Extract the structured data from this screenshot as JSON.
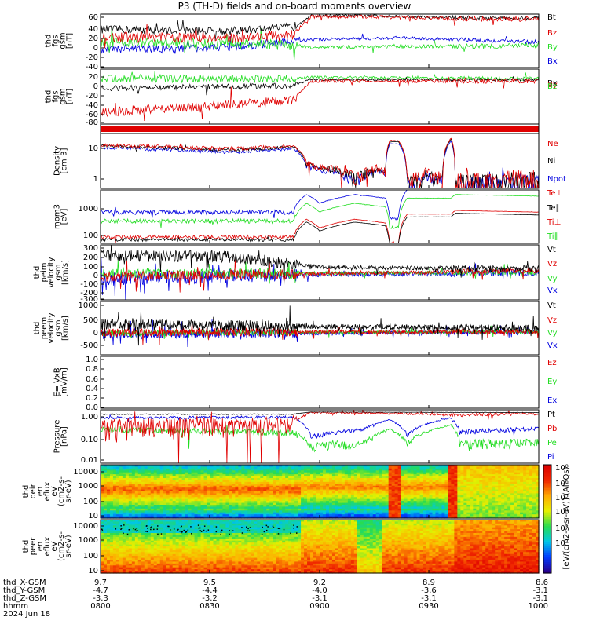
{
  "title": "P3 (TH-D) fields and on-board moments overview",
  "colors": {
    "black": "#000000",
    "red": "#e00000",
    "green": "#22dd22",
    "blue": "#0000e0"
  },
  "panels": [
    {
      "id": "fgs",
      "ylabel": [
        "thd",
        "fgs",
        "gsm",
        "[nT]"
      ],
      "ticks": [
        "60",
        "40",
        "20",
        "0",
        "-20",
        "-40"
      ],
      "legend": [
        {
          "t": "Bt",
          "c": "black"
        },
        {
          "t": "Bz",
          "c": "red"
        },
        {
          "t": "By",
          "c": "green"
        },
        {
          "t": "Bx",
          "c": "blue"
        }
      ]
    },
    {
      "id": "fgs2",
      "ylabel": [
        "thd",
        "fgs",
        "gsm",
        "[nT]"
      ],
      "ticks": [
        "20",
        "0",
        "-20",
        "-40",
        "-60",
        "-80"
      ],
      "legend": [
        {
          "t": "Bx",
          "c": "black"
        },
        {
          "t": "By",
          "c": "red"
        },
        {
          "t": "Bz",
          "c": "green"
        }
      ]
    },
    {
      "id": "density",
      "ylabel": [
        "Density",
        "[cm-3]"
      ],
      "ticks": [
        "10",
        "1"
      ],
      "legend": [
        {
          "t": "Ne",
          "c": "red"
        },
        {
          "t": "Ni",
          "c": "black"
        },
        {
          "t": "Npot",
          "c": "blue"
        }
      ]
    },
    {
      "id": "temp",
      "ylabel": [
        "mom3",
        "[eV]"
      ],
      "ticks": [
        "1000",
        "100"
      ],
      "legend": [
        {
          "t": "Te⊥",
          "c": "red"
        },
        {
          "t": "Te∥",
          "c": "black"
        },
        {
          "t": "Ti⊥",
          "c": "red"
        },
        {
          "t": "Ti∥",
          "c": "green"
        }
      ]
    },
    {
      "id": "vperi",
      "ylabel": [
        "thd",
        "peim",
        "velocity",
        "gsm",
        "[km/s]"
      ],
      "ticks": [
        "300",
        "200",
        "100",
        "0",
        "-100",
        "-200",
        "-300"
      ],
      "legend": [
        {
          "t": "Vt",
          "c": "black"
        },
        {
          "t": "Vz",
          "c": "red"
        },
        {
          "t": "Vy",
          "c": "green"
        },
        {
          "t": "Vx",
          "c": "blue"
        }
      ]
    },
    {
      "id": "vpere",
      "ylabel": [
        "thd",
        "peem",
        "velocity",
        "gsm",
        "[km/s]"
      ],
      "ticks": [
        "1000",
        "500",
        "0",
        "-500"
      ],
      "legend": [
        {
          "t": "Vt",
          "c": "black"
        },
        {
          "t": "Vz",
          "c": "red"
        },
        {
          "t": "Vy",
          "c": "green"
        },
        {
          "t": "Vx",
          "c": "blue"
        }
      ]
    },
    {
      "id": "efield",
      "ylabel": [
        "E=-VxB",
        "[mV/m]"
      ],
      "ticks": [
        "1.0",
        "0.8",
        "0.6",
        "0.4",
        "0.2",
        "0.0"
      ],
      "legend": [
        {
          "t": "Ez",
          "c": "red"
        },
        {
          "t": "Ey",
          "c": "green"
        },
        {
          "t": "Ex",
          "c": "blue"
        }
      ]
    },
    {
      "id": "pressure",
      "ylabel": [
        "Pressure",
        "[nPa]"
      ],
      "ticks": [
        "1.00",
        "0.10",
        "0.01"
      ],
      "legend": [
        {
          "t": "Pt",
          "c": "black"
        },
        {
          "t": "Pb",
          "c": "red"
        },
        {
          "t": "Pe",
          "c": "green"
        },
        {
          "t": "Pi",
          "c": "blue"
        }
      ]
    },
    {
      "id": "peir",
      "ylabel": [
        "thd",
        "peir",
        "en",
        "eflux",
        "eV",
        "(cm2-s-",
        "sr-eV)"
      ],
      "ticks": [
        "10000",
        "1000",
        "100",
        "10"
      ]
    },
    {
      "id": "peer",
      "ylabel": [
        "thd",
        "peer",
        "en",
        "eflux",
        "eV",
        "(cm2-s-",
        "sr-eV)"
      ],
      "ticks": [
        "10000",
        "1000",
        "100",
        "10"
      ]
    }
  ],
  "colorbar": {
    "ticks": [
      "10⁸",
      "10⁶",
      "10⁵",
      "10⁴",
      "10³",
      "10²"
    ],
    "label": "[eV/(cm2-s-sr-eV)] (All Qs)"
  },
  "xaxis": {
    "rows": [
      {
        "label": "thd_X-GSM",
        "values": [
          "9.7",
          "9.5",
          "9.2",
          "8.9",
          "8.6"
        ]
      },
      {
        "label": "thd_Y-GSM",
        "values": [
          "-4.7",
          "-4.4",
          "-4.0",
          "-3.6",
          "-3.1"
        ]
      },
      {
        "label": "thd_Z-GSM",
        "values": [
          "-3.3",
          "-3.2",
          "-3.1",
          "-3.1",
          "-3.1"
        ]
      },
      {
        "label": "hhmm",
        "values": [
          "0800",
          "0830",
          "0900",
          "0930",
          "1000"
        ]
      }
    ],
    "date": "2024 Jun 18"
  },
  "chart_data": {
    "type": "line",
    "x": [
      "0800",
      "0830",
      "0900",
      "0930",
      "1000"
    ],
    "xlabel": "hhmm",
    "series": [
      {
        "name": "Bt",
        "values": [
          40,
          38,
          62,
          58,
          56
        ]
      },
      {
        "name": "Bz",
        "values": [
          20,
          18,
          60,
          57,
          55
        ]
      },
      {
        "name": "Density Ne",
        "values": [
          10,
          8,
          2,
          1.2,
          1
        ]
      }
    ]
  }
}
